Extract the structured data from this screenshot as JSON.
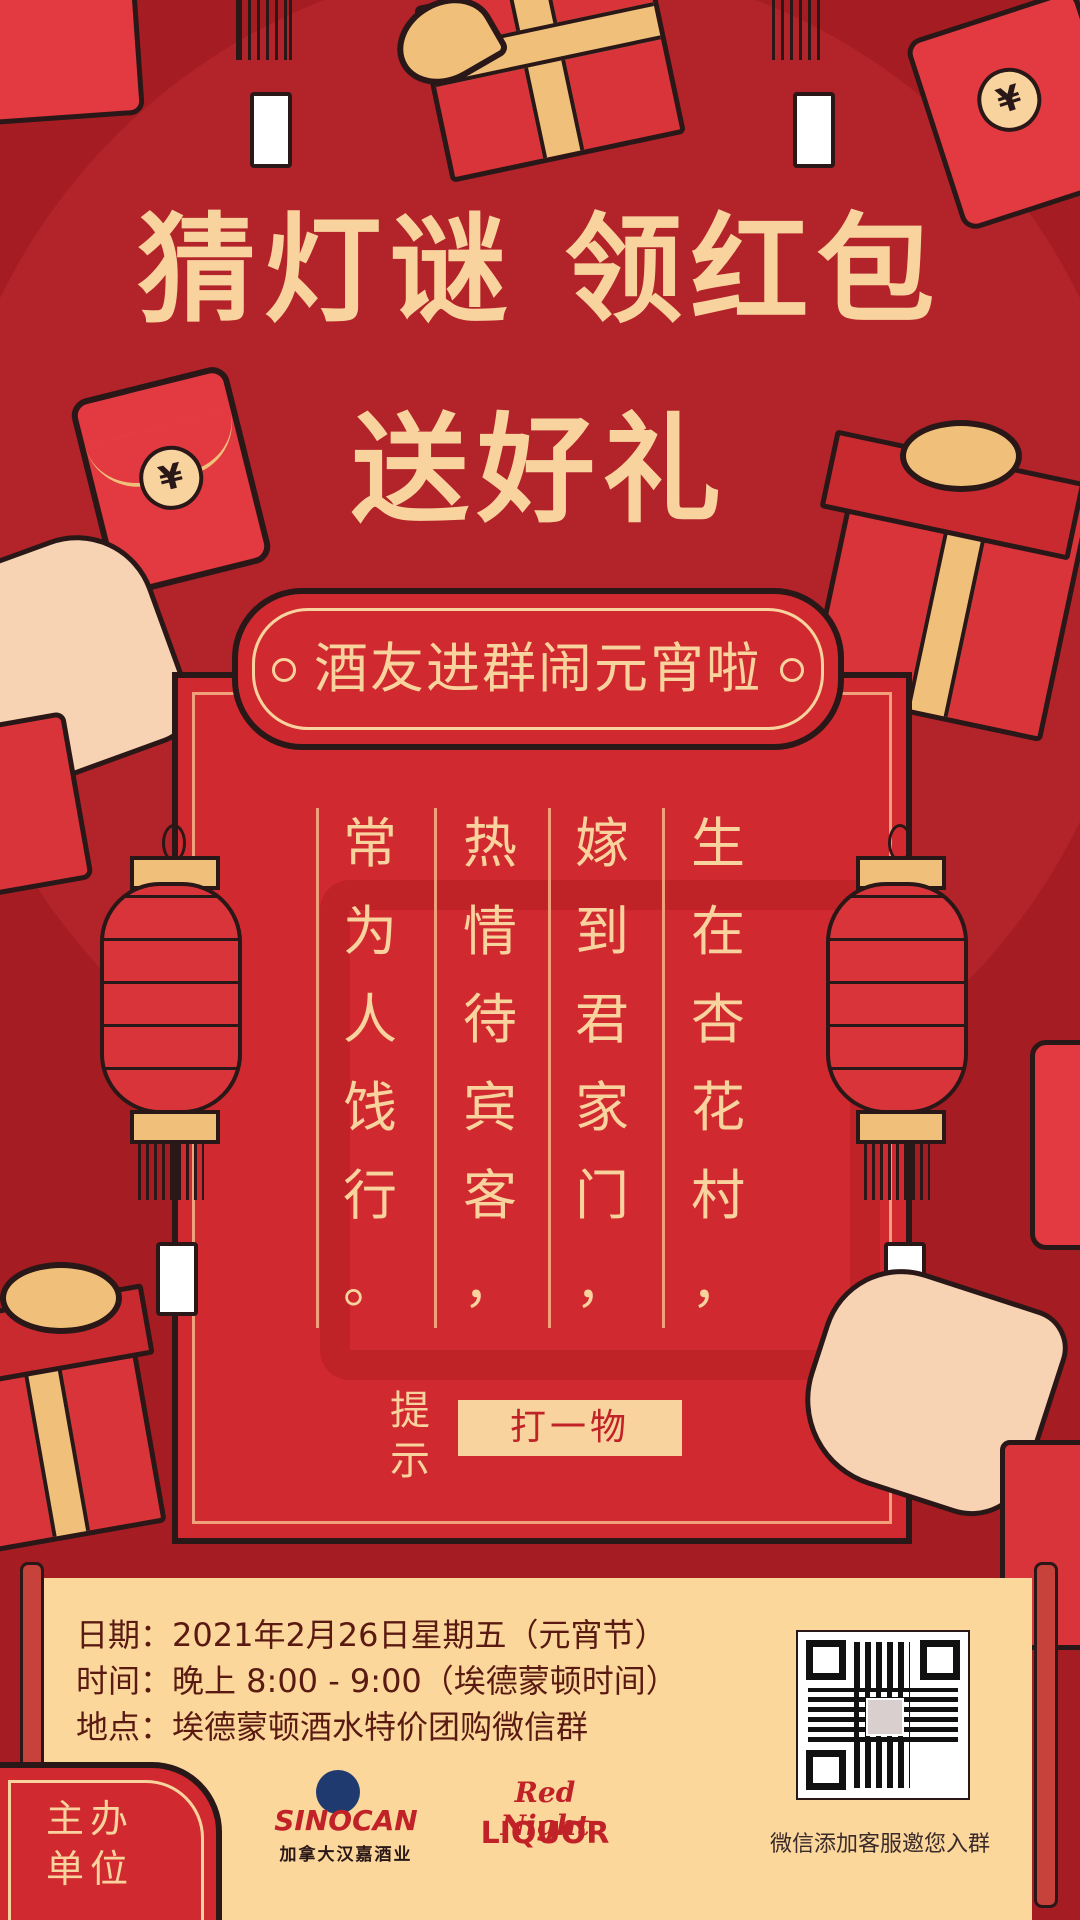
{
  "headline": {
    "line1": "猜灯谜 领红包",
    "line2": "送好礼"
  },
  "banner": "酒友进群闹元宵啦",
  "poem_columns": [
    [
      "生",
      "在",
      "杏",
      "花",
      "村",
      "，"
    ],
    [
      "嫁",
      "到",
      "君",
      "家",
      "门",
      "，"
    ],
    [
      "热",
      "情",
      "待",
      "宾",
      "客",
      "，"
    ],
    [
      "常",
      "为",
      "人",
      "饯",
      "行",
      "。"
    ]
  ],
  "hint": {
    "label_top": "提",
    "label_bottom": "示",
    "answer_type": "打一物"
  },
  "event_info": {
    "date": "日期：2021年2月26日星期五（元宵节）",
    "time": "时间：晚上 8:00 - 9:00（埃德蒙顿时间）",
    "place": "地点：埃德蒙顿酒水特价团购微信群"
  },
  "organizer": {
    "label_top": "主办",
    "label_bottom": "单位",
    "sponsor1_name": "SINOCAN",
    "sponsor1_sub": "加拿大汉嘉酒业",
    "sponsor2_top": "Red Night",
    "sponsor2_bottom": "LIQUOR"
  },
  "qr_caption": "微信添加客服邀您入群",
  "envelope_symbol": "¥",
  "colors": {
    "background": "#a51d22",
    "panel": "#d02a30",
    "gold": "#f9d39e",
    "info_band": "#fbd79c",
    "ink": "#2a1717"
  },
  "icons": {
    "red_envelope": "red-envelope-icon",
    "gift": "gift-box-icon",
    "lantern": "lantern-icon",
    "hand": "hand-icon",
    "qr": "qr-code-icon"
  }
}
